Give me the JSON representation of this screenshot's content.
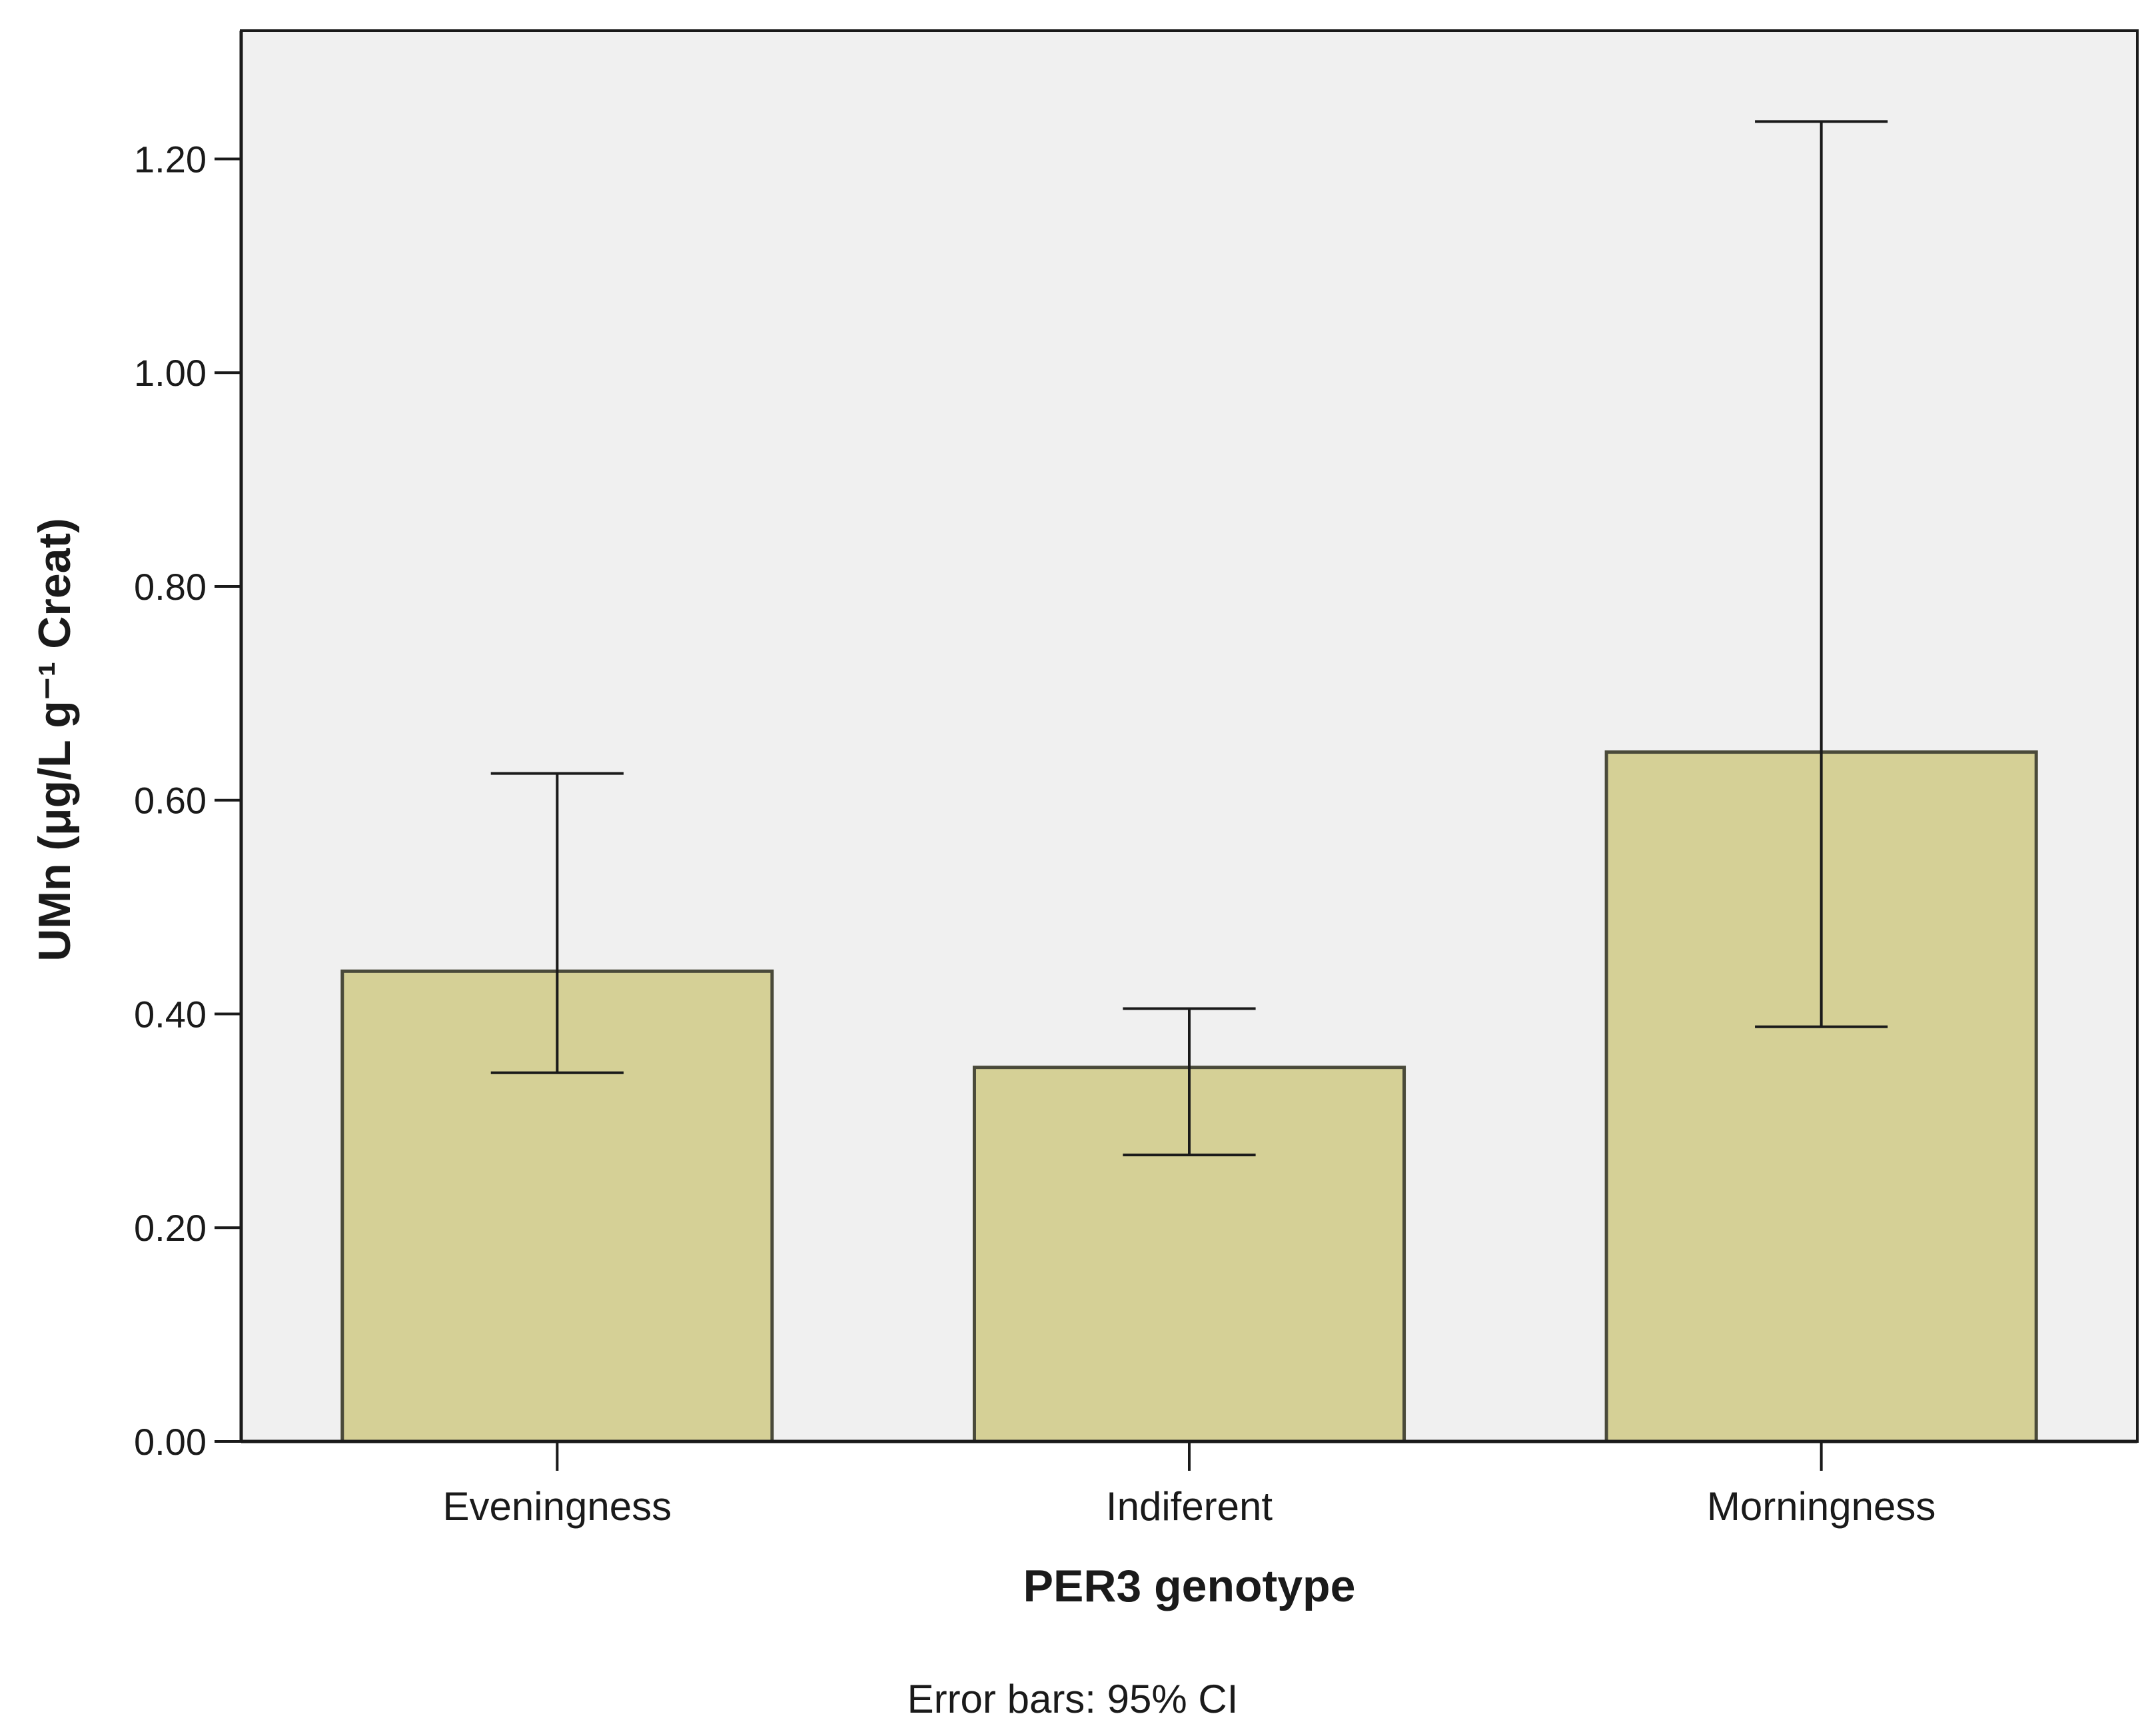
{
  "chart_data": {
    "type": "bar",
    "categories": [
      "Eveningness",
      "Indiferent",
      "Morningness"
    ],
    "values": [
      0.44,
      0.35,
      0.645
    ],
    "error_bars": {
      "lower": [
        0.345,
        0.268,
        0.388
      ],
      "upper": [
        0.625,
        0.405,
        1.235
      ]
    },
    "xlabel": "PER3 genotype",
    "ylabel": "UMn (μg/L g⁻¹ Creat)",
    "ylim": [
      0,
      1.32
    ],
    "yticks": [
      0,
      0.2,
      0.4,
      0.6,
      0.8,
      1.0,
      1.2
    ],
    "ytick_labels": [
      "0.00",
      "0.20",
      "0.40",
      "0.60",
      "0.80",
      "1.00",
      "1.20"
    ],
    "footnote": "Error bars: 95% CI",
    "grid": false,
    "legend": "none",
    "colors": {
      "bar_fill": "#d5d096",
      "bar_stroke": "#4a4a3a",
      "plot_background": "#f0f0f0",
      "axis": "#1a1a1a"
    }
  }
}
